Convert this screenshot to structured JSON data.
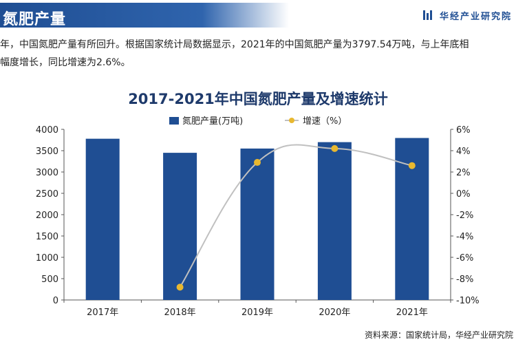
{
  "header": {
    "title": "氮肥产量",
    "brand": "华经产业研究院"
  },
  "description": {
    "line1": "年，中国氮肥产量有所回升。根据国家统计局数据显示，2021年的中国氮肥产量为3797.54万吨，与上年底相",
    "line2": "幅度增长，同比增速为2.6%。"
  },
  "source": "资料来源：国家统计局，华经产业研究院",
  "colors": {
    "bar": "#1f4e93",
    "line": "#c0c0c0",
    "marker": "#e8b830",
    "title_bar": "#1f4e93"
  },
  "chart_data": {
    "type": "bar",
    "title": "2017-2021年中国氮肥产量及增速统计",
    "categories": [
      "2017年",
      "2018年",
      "2019年",
      "2020年",
      "2021年"
    ],
    "series": [
      {
        "name": "氮肥产量(万吨)",
        "type": "bar",
        "axis": "left",
        "values": [
          3780,
          3450,
          3550,
          3700,
          3797.54
        ]
      },
      {
        "name": "增速（%）",
        "type": "line",
        "axis": "right",
        "values": [
          null,
          -8.8,
          2.9,
          4.2,
          2.6
        ]
      }
    ],
    "y_left": {
      "ylim": [
        0,
        4000
      ],
      "ticks": [
        "0",
        "500",
        "1000",
        "1500",
        "2000",
        "2500",
        "3000",
        "3500",
        "4000"
      ]
    },
    "y_right": {
      "ylim": [
        -10,
        6
      ],
      "ticks": [
        "-10%",
        "-8%",
        "-6%",
        "-4%",
        "-2%",
        "0%",
        "2%",
        "4%",
        "6%"
      ]
    },
    "legend": "top",
    "grid": false
  }
}
